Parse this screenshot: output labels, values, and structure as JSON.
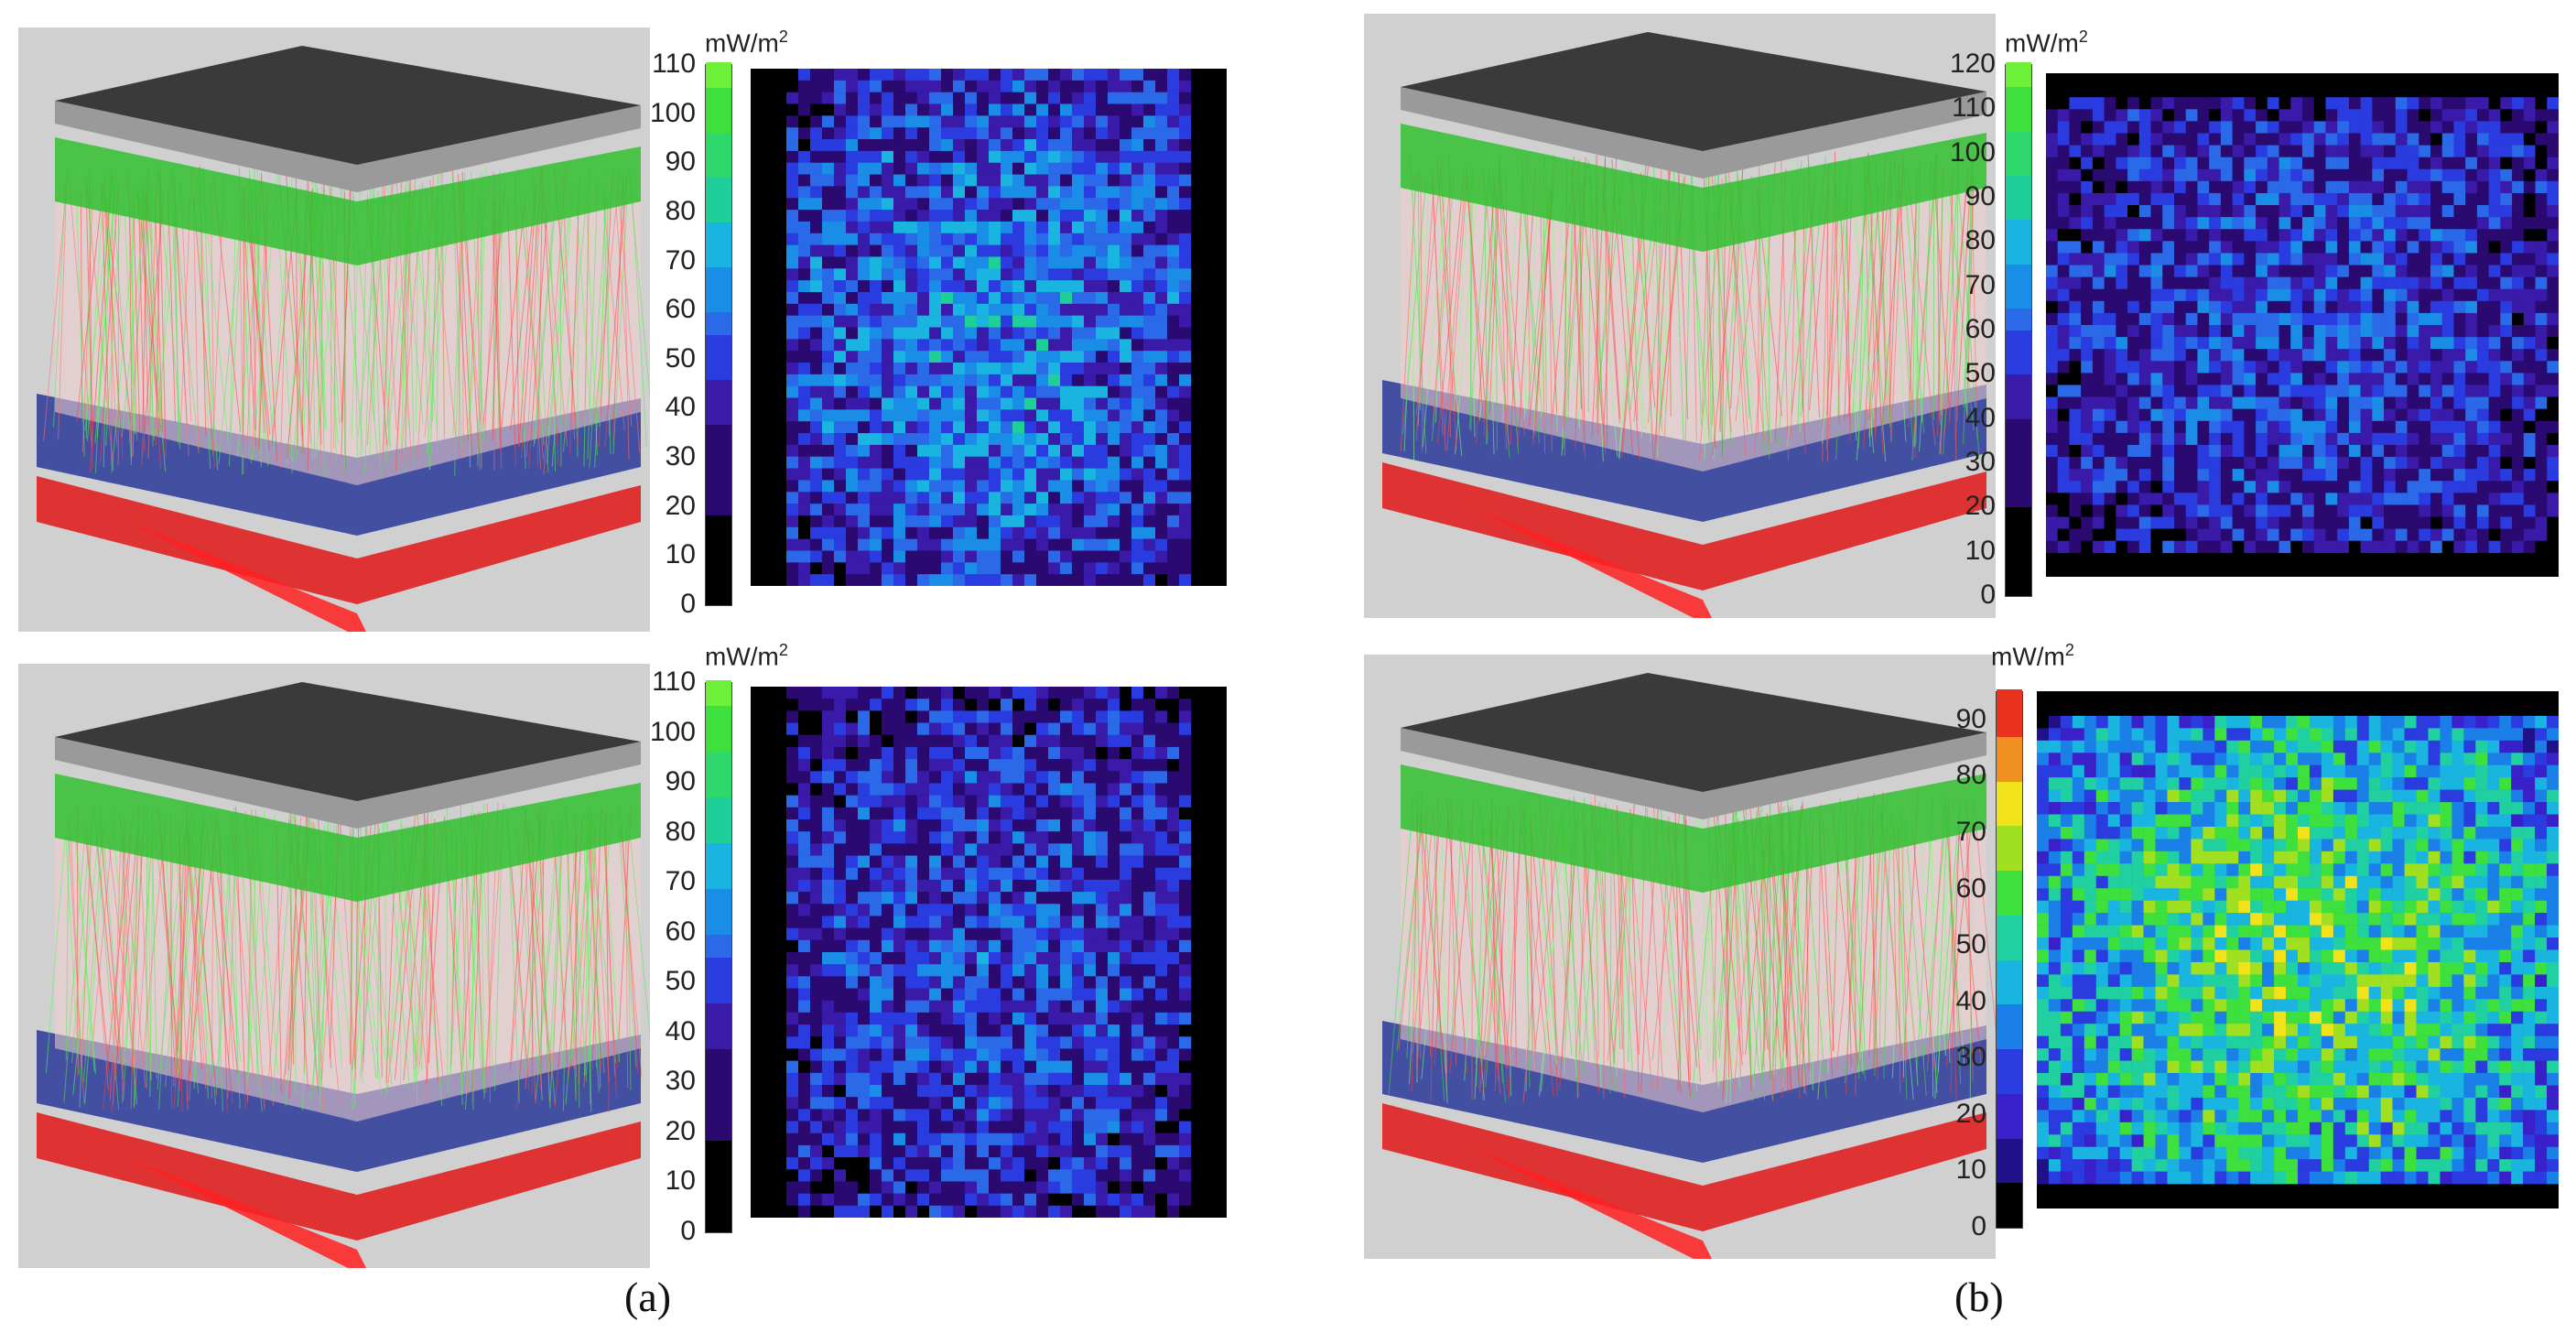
{
  "panels": [
    {
      "id": "a-top",
      "unit": "mW/m",
      "unit_sup": "2",
      "ticks": [
        "0",
        "10",
        "20",
        "30",
        "40",
        "50",
        "60",
        "70",
        "80",
        "90",
        "100",
        "110"
      ],
      "scale": "green",
      "max_value": 110
    },
    {
      "id": "b-top",
      "unit": "mW/m",
      "unit_sup": "2",
      "ticks": [
        "0",
        "10",
        "20",
        "30",
        "40",
        "50",
        "60",
        "70",
        "80",
        "90",
        "100",
        "110",
        "120"
      ],
      "scale": "green",
      "max_value": 120
    },
    {
      "id": "a-bottom",
      "unit": "mW/m",
      "unit_sup": "2",
      "ticks": [
        "0",
        "10",
        "20",
        "30",
        "40",
        "50",
        "60",
        "70",
        "80",
        "90",
        "100",
        "110"
      ],
      "scale": "green",
      "max_value": 110
    },
    {
      "id": "b-bottom",
      "unit": "mW/m",
      "unit_sup": "2",
      "ticks": [
        "0",
        "10",
        "20",
        "30",
        "40",
        "50",
        "60",
        "70",
        "80",
        "90"
      ],
      "scale": "jet",
      "max_value": 95
    }
  ],
  "labels": {
    "a": "(a)",
    "b": "(b)"
  },
  "colors": {
    "black": "#000000",
    "indigo": "#2a0a70",
    "blue": "#2a3ce0",
    "cyan": "#19b5e0",
    "green": "#3de03d",
    "yellow": "#f2e21a",
    "red": "#e8321e"
  }
}
